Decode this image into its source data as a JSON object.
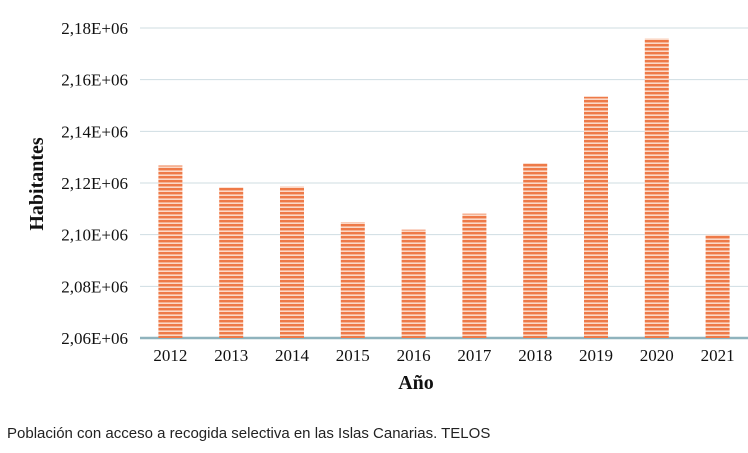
{
  "chart_data": {
    "type": "bar",
    "categories": [
      "2012",
      "2013",
      "2014",
      "2015",
      "2016",
      "2017",
      "2018",
      "2019",
      "2020",
      "2021"
    ],
    "values": [
      2126769,
      2118344,
      2118679,
      2104815,
      2101924,
      2108121,
      2127685,
      2153389,
      2175952,
      2100000
    ],
    "title": "",
    "xlabel": "Año",
    "ylabel": "Habitantes",
    "ylim": [
      2060000,
      2180000
    ],
    "yticks": [
      "2,06E+06",
      "2,08E+06",
      "2,10E+06",
      "2,12E+06",
      "2,14E+06",
      "2,16E+06",
      "2,18E+06"
    ],
    "grid": true,
    "bar_color": "#f07f4f"
  },
  "caption": "Población con acceso a recogida selectiva en las Islas Canarias. TELOS"
}
